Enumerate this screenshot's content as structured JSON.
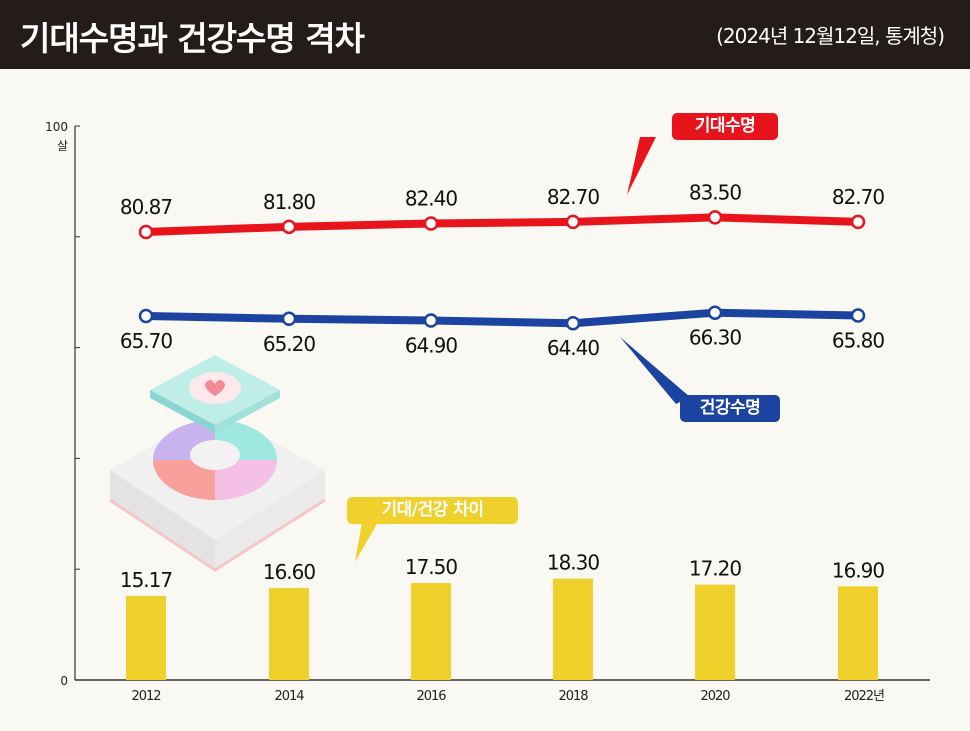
{
  "header": {
    "title": "기대수명과 건강수명 격차",
    "source": "(2024년 12월12일, 통계청)"
  },
  "callouts": {
    "life": "기대수명",
    "healthy": "건강수명",
    "gap": "기대/건강 차이"
  },
  "colors": {
    "life": "#e8141b",
    "healthy": "#1d43a0",
    "gap": "#f0d12b"
  },
  "chart_data": {
    "type": "line+bar",
    "categories": [
      "2012",
      "2014",
      "2016",
      "2018",
      "2020",
      "2022년"
    ],
    "ylim": [
      0,
      100
    ],
    "ytick_labels": {
      "top": "100",
      "unit": "살",
      "bottom": "0"
    },
    "series": [
      {
        "name": "기대수명",
        "type": "line",
        "values": [
          80.87,
          81.8,
          82.4,
          82.7,
          83.5,
          82.7
        ],
        "labels": [
          "80.87",
          "81.80",
          "82.40",
          "82.70",
          "83.50",
          "82.70"
        ]
      },
      {
        "name": "건강수명",
        "type": "line",
        "values": [
          65.7,
          65.2,
          64.9,
          64.4,
          66.3,
          65.8
        ],
        "labels": [
          "65.70",
          "65.20",
          "64.90",
          "64.40",
          "66.30",
          "65.80"
        ]
      },
      {
        "name": "기대/건강 차이",
        "type": "bar",
        "values": [
          15.17,
          16.6,
          17.5,
          18.3,
          17.2,
          16.9
        ],
        "labels": [
          "15.17",
          "16.60",
          "17.50",
          "18.30",
          "17.20",
          "16.90"
        ]
      }
    ]
  }
}
